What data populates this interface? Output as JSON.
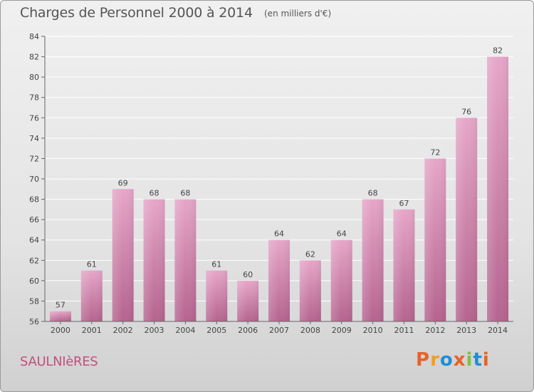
{
  "chart_data": {
    "type": "bar",
    "title": "Charges de Personnel 2000 à 2014",
    "subtitle": "(en milliers d'€)",
    "categories": [
      "2000",
      "2001",
      "2002",
      "2003",
      "2004",
      "2005",
      "2006",
      "2007",
      "2008",
      "2009",
      "2010",
      "2011",
      "2012",
      "2013",
      "2014"
    ],
    "values": [
      57,
      61,
      69,
      68,
      68,
      61,
      60,
      64,
      62,
      64,
      68,
      67,
      72,
      76,
      82
    ],
    "ylim": [
      56,
      84
    ],
    "yticks": [
      56,
      58,
      60,
      62,
      64,
      66,
      68,
      70,
      72,
      74,
      76,
      78,
      80,
      82,
      84
    ],
    "grid": "horizontal",
    "bar_color": "#d67fae"
  },
  "footer": {
    "commune": "SAULNIèRES",
    "logo_text": "Proxiti",
    "logo_colors": [
      "#e8622a",
      "#f0a020",
      "#1e8fd6",
      "#e8622a",
      "#7cc242",
      "#1e8fd6",
      "#e8622a"
    ]
  }
}
